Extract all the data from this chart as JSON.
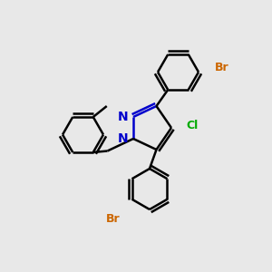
{
  "background_color": "#e8e8e8",
  "bond_color": "#000000",
  "N_color": "#0000cc",
  "Br_color": "#cc6600",
  "Cl_color": "#00aa00",
  "line_width": 1.8,
  "figsize": [
    3.0,
    3.0
  ],
  "dpi": 100,
  "xlim": [
    0,
    10
  ],
  "ylim": [
    0,
    10
  ],
  "ring_r": 0.75,
  "dbo_ring": 0.12,
  "font_size": 10
}
